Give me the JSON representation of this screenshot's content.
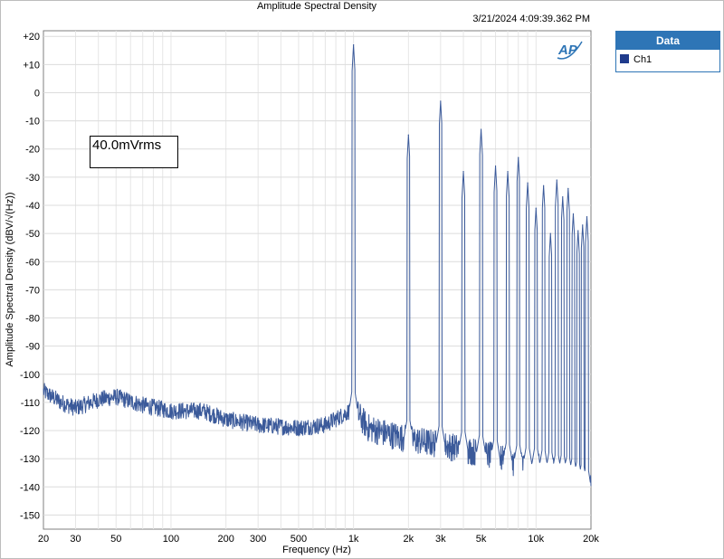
{
  "page": {
    "title": "Amplitude Spectral Density",
    "timestamp": "3/21/2024 4:09:39.362 PM",
    "annotation": "40.0mVrms",
    "logo_text": "AP"
  },
  "legend": {
    "header": "Data",
    "items": [
      {
        "label": "Ch1",
        "color": "#1f3b8c"
      }
    ]
  },
  "chart_data": {
    "type": "line",
    "title": "Amplitude Spectral Density",
    "xlabel": "Frequency (Hz)",
    "ylabel": "Amplitude Spectral Density (dBV/√(Hz))",
    "xscale": "log",
    "xlim": [
      20,
      20000
    ],
    "ylim": [
      -155,
      22
    ],
    "xticks": [
      20,
      30,
      50,
      100,
      200,
      300,
      500,
      1000,
      2000,
      3000,
      5000,
      10000,
      20000
    ],
    "xtick_labels": [
      "20",
      "30",
      "50",
      "100",
      "200",
      "300",
      "500",
      "1k",
      "2k",
      "3k",
      "5k",
      "10k",
      "20k"
    ],
    "yticks": [
      20,
      10,
      0,
      -10,
      -20,
      -30,
      -40,
      -50,
      -60,
      -70,
      -80,
      -90,
      -100,
      -110,
      -120,
      -130,
      -140,
      -150
    ],
    "ytick_labels": [
      "+20",
      "+10",
      "0",
      "-10",
      "-20",
      "-30",
      "-40",
      "-50",
      "-60",
      "-70",
      "-80",
      "-90",
      "-100",
      "-110",
      "-120",
      "-130",
      "-140",
      "-150"
    ],
    "grid": true,
    "series": [
      {
        "name": "Ch1",
        "color": "#3b5a9a",
        "noise_floor": {
          "x": [
            20,
            25,
            30,
            40,
            50,
            70,
            100,
            150,
            200,
            300,
            500,
            700,
            900,
            1000,
            1200,
            1500,
            2000,
            3000,
            5000,
            7000,
            10000,
            15000,
            20000
          ],
          "y": [
            -106,
            -110,
            -112,
            -109,
            -108,
            -111,
            -113,
            -113,
            -116,
            -118,
            -119,
            -118,
            -114,
            -112,
            -119,
            -121,
            -123,
            -125,
            -128,
            -131,
            -133,
            -136,
            -141
          ]
        },
        "peaks": {
          "x": [
            1000,
            2000,
            3000,
            4000,
            5000,
            6000,
            7000,
            8000,
            9000,
            10000,
            11000,
            12000,
            13000,
            14000,
            15000,
            16000,
            17000,
            18000,
            19000
          ],
          "y": [
            17,
            -15,
            -3,
            -28,
            -13,
            -26,
            -28,
            -23,
            -32,
            -41,
            -33,
            -50,
            -31,
            -37,
            -34,
            -43,
            -49,
            -47,
            -44
          ]
        }
      }
    ]
  }
}
